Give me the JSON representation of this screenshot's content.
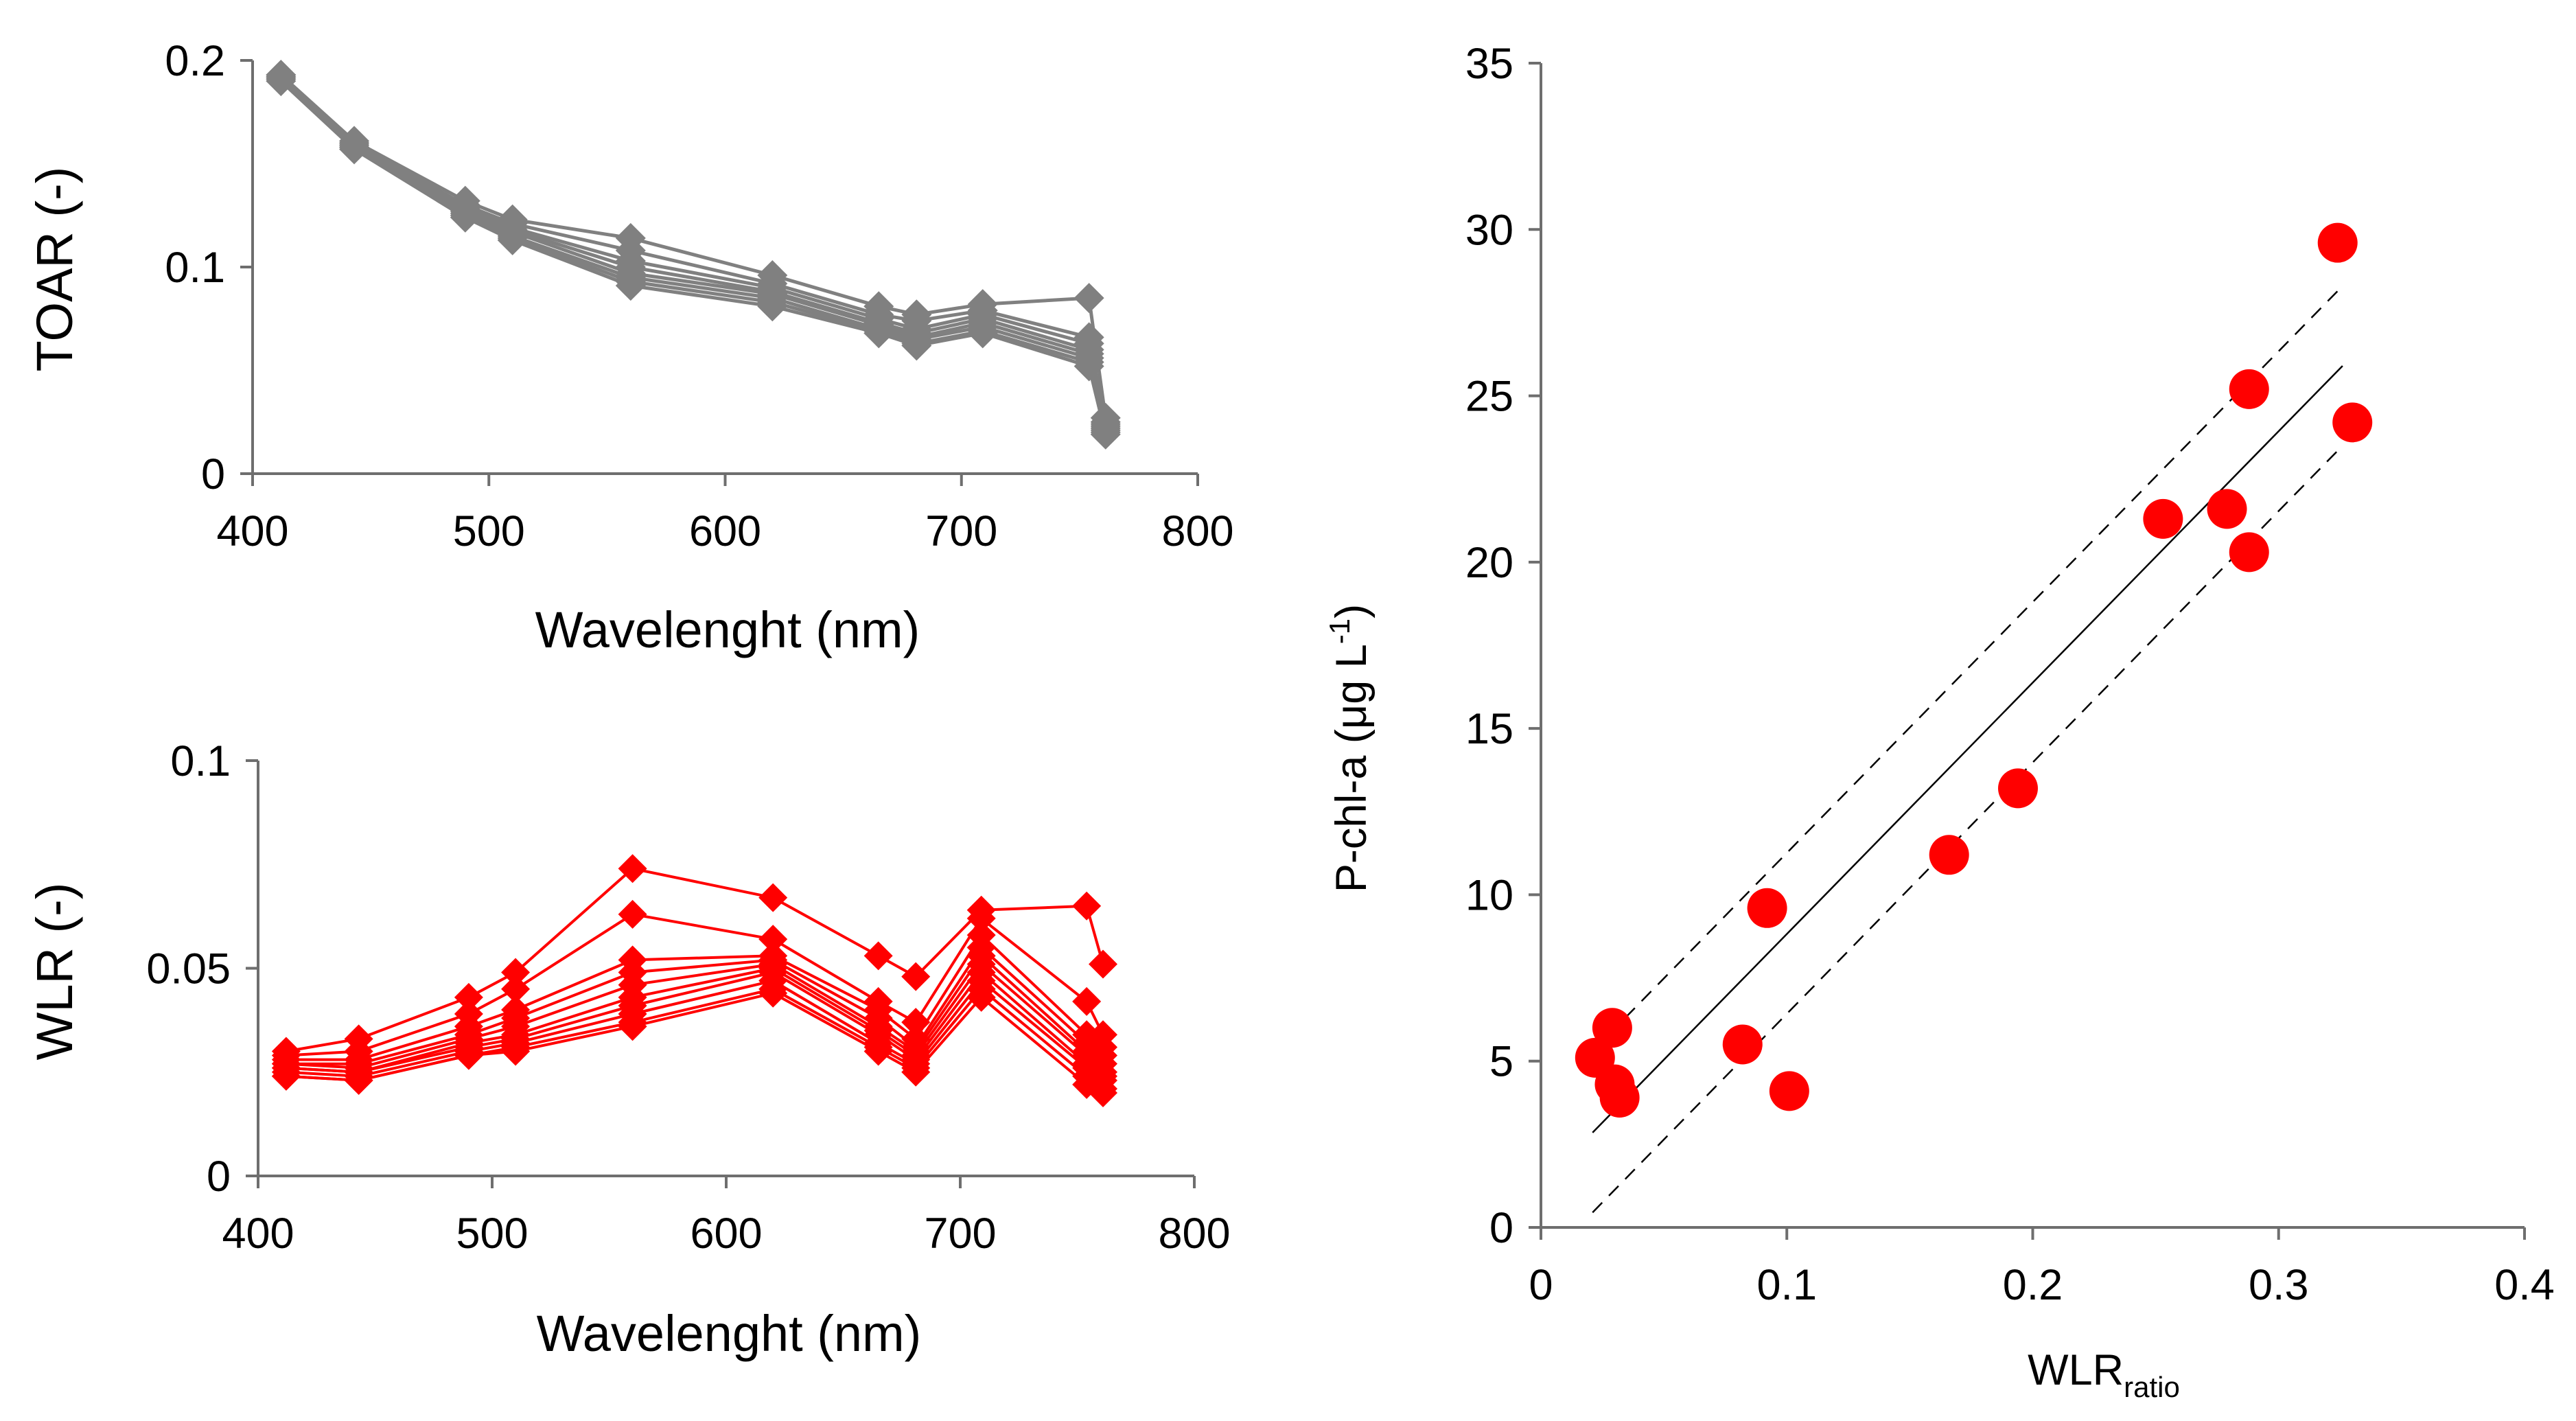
{
  "chart_data": [
    {
      "id": "toar",
      "type": "line",
      "xlabel": "Wavelenght (nm)",
      "ylabel": "TOAR (-)",
      "xlim": [
        400,
        800
      ],
      "ylim": [
        0,
        0.2
      ],
      "xticks": [
        "400",
        "500",
        "600",
        "700",
        "800"
      ],
      "yticks": [
        "0",
        "0.1",
        "0.2"
      ],
      "color": "#808080",
      "marker": "diamond",
      "x": [
        412,
        443,
        490,
        510,
        560,
        620,
        665,
        681,
        709,
        754,
        761
      ],
      "series": [
        {
          "name": "s1",
          "values": [
            0.193,
            0.161,
            0.132,
            0.123,
            0.114,
            0.096,
            0.081,
            0.077,
            0.082,
            0.085,
            0.027
          ]
        },
        {
          "name": "s2",
          "values": [
            0.193,
            0.16,
            0.13,
            0.121,
            0.108,
            0.092,
            0.077,
            0.074,
            0.079,
            0.066,
            0.025
          ]
        },
        {
          "name": "s3",
          "values": [
            0.192,
            0.16,
            0.129,
            0.119,
            0.103,
            0.09,
            0.075,
            0.07,
            0.077,
            0.063,
            0.024
          ]
        },
        {
          "name": "s4",
          "values": [
            0.192,
            0.159,
            0.128,
            0.118,
            0.1,
            0.088,
            0.073,
            0.068,
            0.075,
            0.06,
            0.023
          ]
        },
        {
          "name": "s5",
          "values": [
            0.192,
            0.159,
            0.127,
            0.117,
            0.097,
            0.087,
            0.072,
            0.066,
            0.073,
            0.058,
            0.022
          ]
        },
        {
          "name": "s6",
          "values": [
            0.191,
            0.158,
            0.126,
            0.115,
            0.095,
            0.085,
            0.07,
            0.065,
            0.071,
            0.056,
            0.021
          ]
        },
        {
          "name": "s7",
          "values": [
            0.191,
            0.158,
            0.125,
            0.114,
            0.093,
            0.083,
            0.069,
            0.063,
            0.069,
            0.054,
            0.02
          ]
        },
        {
          "name": "s8",
          "values": [
            0.19,
            0.157,
            0.124,
            0.113,
            0.091,
            0.081,
            0.068,
            0.062,
            0.068,
            0.052,
            0.019
          ]
        }
      ]
    },
    {
      "id": "wlr",
      "type": "line",
      "xlabel": "Wavelenght (nm)",
      "ylabel": "WLR (-)",
      "xlim": [
        400,
        800
      ],
      "ylim": [
        0,
        0.1
      ],
      "xticks": [
        "400",
        "500",
        "600",
        "700",
        "800"
      ],
      "yticks": [
        "0",
        "0.05",
        "0.1"
      ],
      "color": "#ff0000",
      "marker": "diamond",
      "x": [
        412,
        443,
        490,
        510,
        560,
        620,
        665,
        681,
        709,
        754,
        761
      ],
      "series": [
        {
          "name": "s1",
          "values": [
            0.03,
            0.033,
            0.043,
            0.049,
            0.074,
            0.067,
            0.053,
            0.048,
            0.064,
            0.065,
            0.051
          ]
        },
        {
          "name": "s2",
          "values": [
            0.029,
            0.03,
            0.039,
            0.045,
            0.063,
            0.057,
            0.042,
            0.037,
            0.062,
            0.042,
            0.034
          ]
        },
        {
          "name": "s3",
          "values": [
            0.028,
            0.028,
            0.036,
            0.04,
            0.052,
            0.053,
            0.04,
            0.033,
            0.058,
            0.034,
            0.031
          ]
        },
        {
          "name": "s4",
          "values": [
            0.027,
            0.027,
            0.034,
            0.038,
            0.049,
            0.052,
            0.038,
            0.031,
            0.055,
            0.032,
            0.029
          ]
        },
        {
          "name": "s5",
          "values": [
            0.027,
            0.026,
            0.033,
            0.036,
            0.046,
            0.051,
            0.036,
            0.03,
            0.053,
            0.03,
            0.027
          ]
        },
        {
          "name": "s6",
          "values": [
            0.026,
            0.025,
            0.032,
            0.034,
            0.043,
            0.05,
            0.035,
            0.029,
            0.051,
            0.029,
            0.025
          ]
        },
        {
          "name": "s7",
          "values": [
            0.026,
            0.025,
            0.031,
            0.033,
            0.041,
            0.049,
            0.034,
            0.028,
            0.049,
            0.027,
            0.024
          ]
        },
        {
          "name": "s8",
          "values": [
            0.025,
            0.024,
            0.03,
            0.032,
            0.039,
            0.047,
            0.032,
            0.027,
            0.047,
            0.026,
            0.023
          ]
        },
        {
          "name": "s9",
          "values": [
            0.024,
            0.023,
            0.029,
            0.031,
            0.037,
            0.045,
            0.031,
            0.026,
            0.045,
            0.024,
            0.021
          ]
        },
        {
          "name": "s10",
          "values": [
            0.024,
            0.023,
            0.029,
            0.03,
            0.036,
            0.044,
            0.03,
            0.025,
            0.043,
            0.022,
            0.02
          ]
        }
      ]
    },
    {
      "id": "scatter",
      "type": "scatter",
      "xlabel_main": "WLR",
      "xlabel_sub": "ratio",
      "ylabel_main": "P-chl-a (μg L",
      "ylabel_sup": "-1",
      "ylabel_close": ")",
      "xlim": [
        0,
        0.4
      ],
      "ylim": [
        0,
        35
      ],
      "xticks": [
        "0",
        "0.1",
        "0.2",
        "0.3",
        "0.4"
      ],
      "yticks": [
        "0",
        "5",
        "10",
        "15",
        "20",
        "25",
        "30",
        "35"
      ],
      "color": "#ff0000",
      "points": [
        {
          "x": 0.022,
          "y": 5.1
        },
        {
          "x": 0.029,
          "y": 6.0
        },
        {
          "x": 0.03,
          "y": 4.3
        },
        {
          "x": 0.032,
          "y": 3.9
        },
        {
          "x": 0.082,
          "y": 5.5
        },
        {
          "x": 0.092,
          "y": 9.6
        },
        {
          "x": 0.101,
          "y": 4.1
        },
        {
          "x": 0.166,
          "y": 11.2
        },
        {
          "x": 0.194,
          "y": 13.2
        },
        {
          "x": 0.253,
          "y": 21.3
        },
        {
          "x": 0.279,
          "y": 21.6
        },
        {
          "x": 0.288,
          "y": 25.2
        },
        {
          "x": 0.288,
          "y": 20.3
        },
        {
          "x": 0.324,
          "y": 29.6
        },
        {
          "x": 0.33,
          "y": 24.2
        }
      ],
      "fit_line": {
        "x0": 0.021,
        "y0": 2.85,
        "x1": 0.326,
        "y1": 25.9
      },
      "upper_bound": {
        "x0": 0.021,
        "y0": 5.3,
        "x1": 0.326,
        "y1": 28.3
      },
      "lower_bound": {
        "x0": 0.021,
        "y0": 0.45,
        "x1": 0.326,
        "y1": 23.5
      }
    }
  ]
}
